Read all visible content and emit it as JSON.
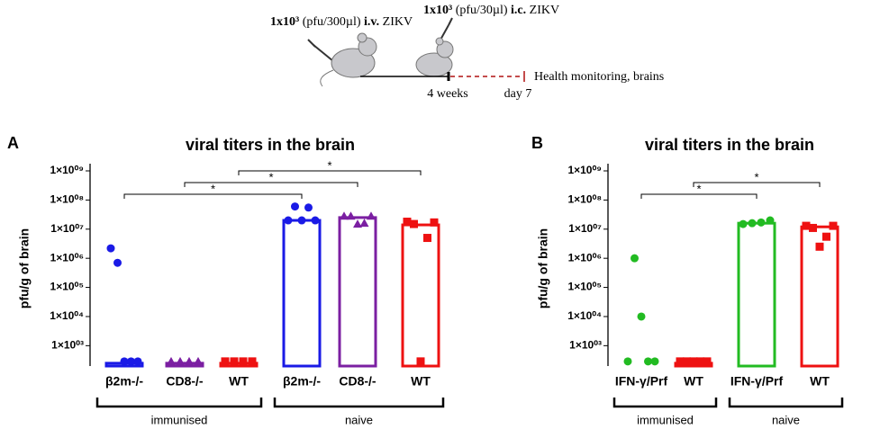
{
  "protocol": {
    "prime": {
      "dose": "1x10³",
      "detail": "(pfu/300µl)",
      "route": "i.v.",
      "virus": "ZIKV"
    },
    "challenge": {
      "dose": "1x10³",
      "detail": "(pfu/30µl)",
      "route": "i.c.",
      "virus": "ZIKV"
    },
    "interval": "4 weeks",
    "end": "day 7",
    "outcome": "Health monitoring, brains"
  },
  "chart_data": [
    {
      "type": "bar",
      "panel": "A",
      "title": "viral titers in the brain",
      "ylabel": "pfu/g of brain",
      "log_scale": true,
      "ylim": [
        200,
        1000000000
      ],
      "yticks": [
        {
          "value": 1000,
          "label": "1×10⁰³"
        },
        {
          "value": 10000,
          "label": "1×10⁰⁴"
        },
        {
          "value": 100000,
          "label": "1×10⁰⁵"
        },
        {
          "value": 1000000,
          "label": "1×10⁰⁶"
        },
        {
          "value": 10000000,
          "label": "1×10⁰⁷"
        },
        {
          "value": 100000000,
          "label": "1×10⁰⁸"
        },
        {
          "value": 1000000000,
          "label": "1×10⁰⁹"
        }
      ],
      "groups": [
        {
          "name": "β2m-/-",
          "color": "#1a1ae6",
          "marker": "circle",
          "bar": 250,
          "points": [
            2200000,
            700000,
            250,
            250,
            250
          ]
        },
        {
          "name": "CD8-/-",
          "color": "#7b1fa2",
          "marker": "triangle",
          "bar": 250,
          "points": [
            250,
            250,
            250,
            250
          ]
        },
        {
          "name": "WT",
          "color": "#ee1111",
          "marker": "square",
          "bar": 250,
          "points": [
            250,
            250,
            250,
            250
          ]
        },
        {
          "name": "β2m-/-",
          "color": "#1a1ae6",
          "marker": "circle",
          "bar": 20000000,
          "points": [
            20000000,
            60000000,
            20000000,
            55000000,
            20000000
          ]
        },
        {
          "name": "CD8-/-",
          "color": "#7b1fa2",
          "marker": "triangle",
          "bar": 25000000,
          "points": [
            28000000,
            28000000,
            15000000,
            16000000,
            28000000
          ]
        },
        {
          "name": "WT",
          "color": "#ee1111",
          "marker": "square",
          "bar": 14000000,
          "points": [
            18000000,
            15000000,
            250,
            5000000,
            17000000
          ]
        }
      ],
      "comparisons": [
        {
          "from": 0,
          "to": 3,
          "label": "*"
        },
        {
          "from": 1,
          "to": 4,
          "label": "*"
        },
        {
          "from": 2,
          "to": 5,
          "label": "*"
        }
      ],
      "brackets": [
        {
          "from": 0,
          "to": 2,
          "label": "immunised"
        },
        {
          "from": 3,
          "to": 5,
          "label": "naive"
        }
      ]
    },
    {
      "type": "bar",
      "panel": "B",
      "title": "viral titers in the brain",
      "ylabel": "pfu/g of brain",
      "log_scale": true,
      "ylim": [
        200,
        1000000000
      ],
      "yticks": [
        {
          "value": 1000,
          "label": "1×10⁰³"
        },
        {
          "value": 10000,
          "label": "1×10⁰⁴"
        },
        {
          "value": 100000,
          "label": "1×10⁰⁵"
        },
        {
          "value": 1000000,
          "label": "1×10⁰⁶"
        },
        {
          "value": 10000000,
          "label": "1×10⁰⁷"
        },
        {
          "value": 100000000,
          "label": "1×10⁰⁸"
        },
        {
          "value": 1000000000,
          "label": "1×10⁰⁹"
        }
      ],
      "groups": [
        {
          "name": "IFN-γ/Prf",
          "color": "#22bb22",
          "marker": "circle",
          "bar": null,
          "points": [
            250,
            1000000,
            10000,
            250,
            250
          ]
        },
        {
          "name": "WT",
          "color": "#ee1111",
          "marker": "square",
          "bar": 250,
          "points": [
            250,
            250,
            250,
            250,
            250
          ]
        },
        {
          "name": "IFN-γ/Prf",
          "color": "#22bb22",
          "marker": "circle",
          "bar": 16000000,
          "points": [
            15000000,
            16000000,
            17000000,
            20000000
          ]
        },
        {
          "name": "WT",
          "color": "#ee1111",
          "marker": "square",
          "bar": 12000000,
          "points": [
            13000000,
            11000000,
            2500000,
            5500000,
            13000000
          ]
        }
      ],
      "comparisons": [
        {
          "from": 0,
          "to": 2,
          "label": "*"
        },
        {
          "from": 1,
          "to": 3,
          "label": "*"
        }
      ],
      "brackets": [
        {
          "from": 0,
          "to": 1,
          "label": "immunised"
        },
        {
          "from": 2,
          "to": 3,
          "label": "naive"
        }
      ]
    }
  ]
}
